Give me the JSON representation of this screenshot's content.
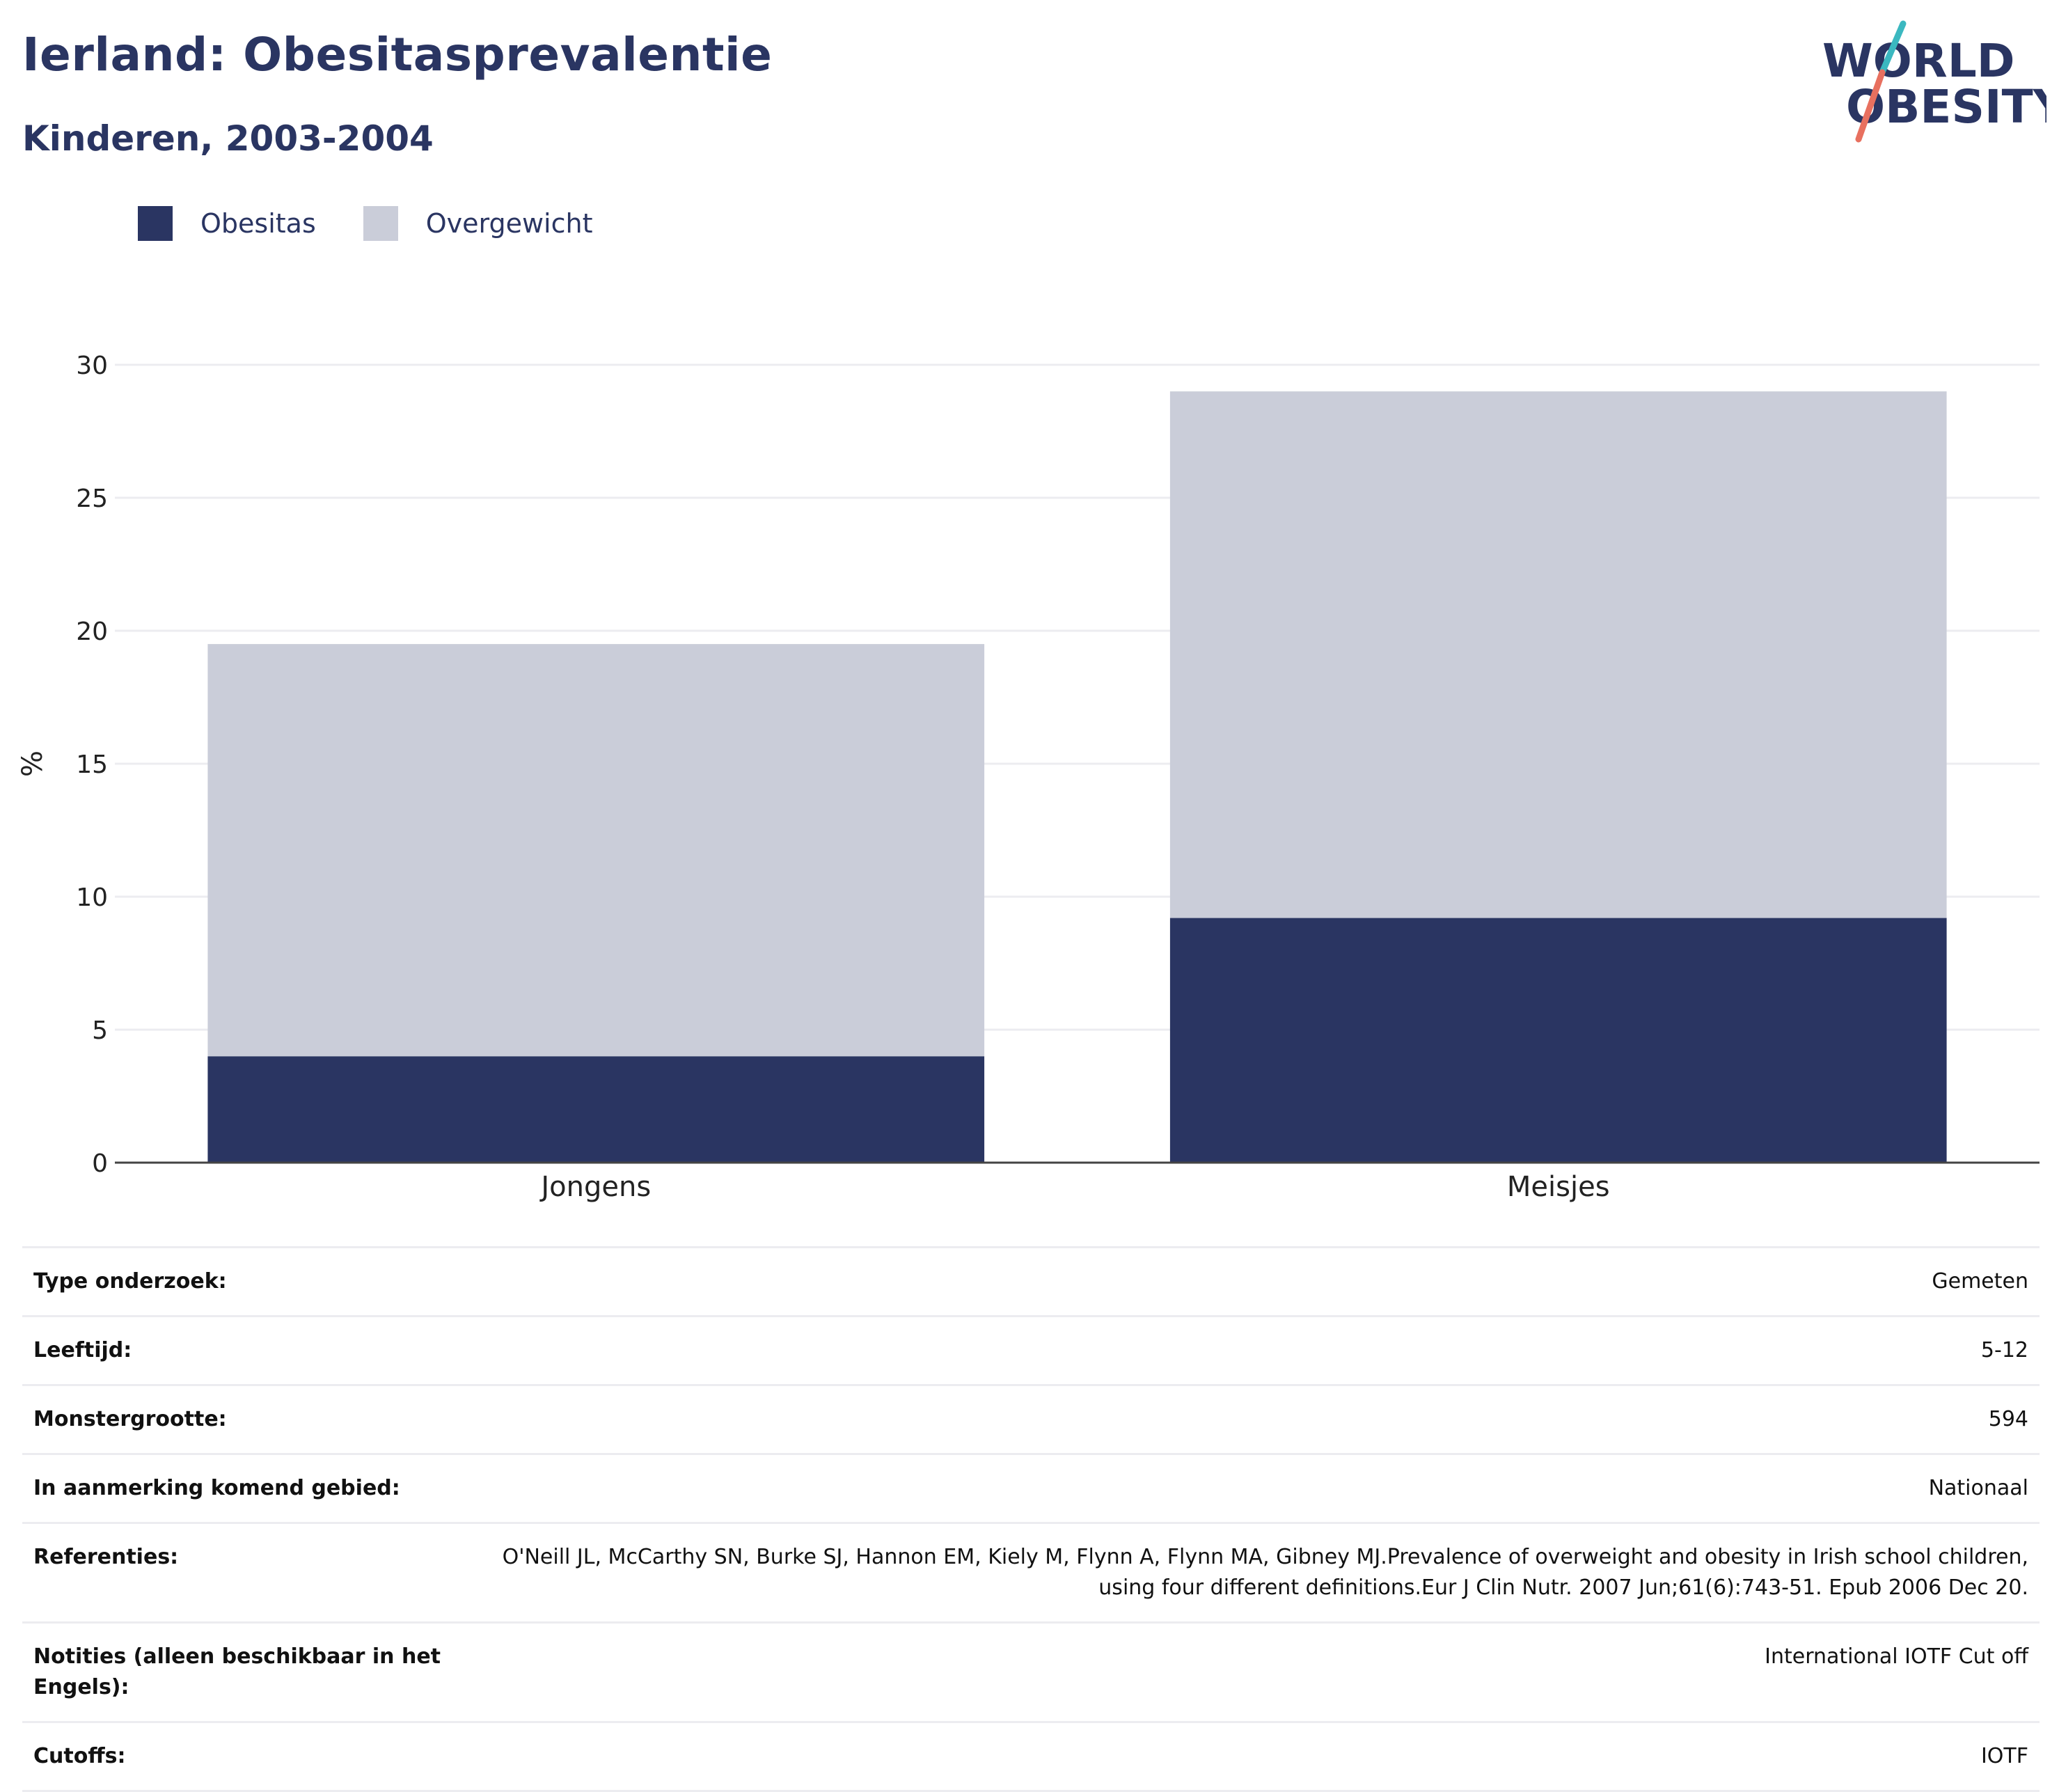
{
  "header": {
    "title": "Ierland: Obesitasprevalentie",
    "subtitle": "Kinderen, 2003-2004"
  },
  "logo": {
    "line1": "WORLD",
    "line2": "OBESITY",
    "colors": {
      "text": "#2a3562",
      "slash_top": "#3bb8c0",
      "slash_bottom": "#e8705f"
    }
  },
  "colors": {
    "obesitas": "#2a3562",
    "overgewicht": "#cacdd9"
  },
  "chart_data": {
    "type": "bar",
    "stacked": true,
    "categories": [
      "Jongens",
      "Meisjes"
    ],
    "series": [
      {
        "name": "Obesitas",
        "values": [
          4.0,
          9.2
        ],
        "color": "#2a3562"
      },
      {
        "name": "Overgewicht",
        "values": [
          15.5,
          19.8
        ],
        "color": "#cacdd9"
      }
    ],
    "totals": [
      19.5,
      29.0
    ],
    "ylabel": "%",
    "ylim": [
      0,
      30
    ],
    "yticks": [
      0,
      5,
      10,
      15,
      20,
      25,
      30
    ],
    "grid": true,
    "legend_position": "top-left"
  },
  "info": [
    {
      "label": "Type onderzoek:",
      "value": "Gemeten"
    },
    {
      "label": "Leeftijd:",
      "value": "5-12"
    },
    {
      "label": "Monstergrootte:",
      "value": "594"
    },
    {
      "label": "In aanmerking komend gebied:",
      "value": "Nationaal"
    },
    {
      "label": "Referenties:",
      "value": "O'Neill JL, McCarthy SN, Burke SJ, Hannon EM, Kiely M, Flynn A, Flynn MA, Gibney MJ.Prevalence of overweight and obesity in Irish school children, using four different definitions.Eur J Clin Nutr. 2007 Jun;61(6):743-51. Epub 2006 Dec 20."
    },
    {
      "label": "Notities (alleen beschikbaar in het Engels):",
      "value": "International IOTF Cut off"
    },
    {
      "label": "Cutoffs:",
      "value": "IOTF"
    }
  ]
}
